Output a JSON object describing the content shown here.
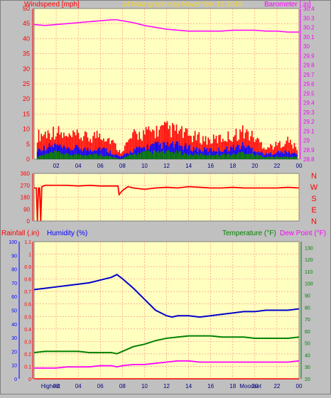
{
  "colors": {
    "background": "#c0c0c0",
    "plot_bg": "#ffffc0",
    "grid": "#ff8080",
    "wind": "#ff0000",
    "gust": "#0000ff",
    "wind_avg": "#008000",
    "barometer": "#ff00ff",
    "direction": "#ff0000",
    "rain": "#ff0000",
    "humidity": "#0000cc",
    "temperature": "#008000",
    "dew_point": "#ff00ff",
    "title": "#ffd700",
    "axis_red": "#ff0000",
    "axis_blue": "#0000ff",
    "axis_green": "#008000",
    "axis_magenta": "#ff00ff"
  },
  "header": {
    "left_label": "Windspeed [mph]",
    "title": "24 hour graph day   November 15 2015",
    "right_label": "Barometer [.in]"
  },
  "lower_labels": {
    "rainfall": "Rainfall (.in)",
    "humidity": "Humidity (%)",
    "temperature": "Temperature (°F)",
    "dew_point": "Dew Point (°F)"
  },
  "compass": [
    "N",
    "W",
    "S",
    "E",
    "N"
  ],
  "time_ticks": [
    "02",
    "04",
    "06",
    "08",
    "10",
    "12",
    "14",
    "16",
    "18",
    "20",
    "22",
    "00"
  ],
  "bottom_overlays": [
    "Highest",
    "Moonset"
  ],
  "chart_data": [
    {
      "type": "area",
      "name": "wind_barometer",
      "title": "24 hour graph day   November 15 2015",
      "xlabel": "",
      "ylabel": "Windspeed [mph]",
      "y2label": "Barometer [.in]",
      "xlim": [
        0,
        24
      ],
      "ylim": [
        0,
        50
      ],
      "y2lim": [
        28.8,
        30.4
      ],
      "y_ticks": [
        0,
        5,
        10,
        15,
        20,
        25,
        30,
        35,
        40,
        45,
        50
      ],
      "y2_ticks": [
        "28.8",
        "28.9",
        "29",
        "29.1",
        "29.2",
        "29.3",
        "29.4",
        "29.5",
        "29.6",
        "29.7",
        "29.8",
        "29.9",
        "30",
        "30.1",
        "30.2",
        "30.3",
        "30.4"
      ],
      "series": [
        {
          "axis": "left",
          "x": [
            0.3,
            1,
            2,
            3,
            4,
            5,
            6,
            7,
            7.8,
            8.3,
            9,
            10,
            11,
            12,
            13,
            14,
            15,
            16,
            17,
            18,
            19,
            20,
            21,
            22,
            23,
            23.9
          ],
          "values": [
            10,
            11,
            12,
            9,
            10,
            9,
            11,
            8,
            3,
            6,
            10,
            11,
            12,
            13,
            12,
            10,
            9,
            8,
            9,
            10,
            12,
            9,
            5,
            6,
            8,
            4
          ]
        },
        {
          "axis": "left",
          "x": [
            0.3,
            1,
            2,
            3,
            4,
            5,
            6,
            7,
            7.8,
            8.3,
            9,
            10,
            11,
            12,
            13,
            14,
            15,
            16,
            17,
            18,
            19,
            20,
            21,
            22,
            23,
            23.9
          ],
          "values": [
            4,
            5,
            6,
            4,
            5,
            4,
            5,
            3,
            1,
            2,
            4,
            5,
            6,
            6,
            6,
            5,
            4,
            4,
            4,
            5,
            6,
            4,
            2,
            3,
            3,
            2
          ]
        },
        {
          "axis": "left",
          "x": [
            0.3,
            1,
            2,
            3,
            4,
            5,
            6,
            7,
            7.8,
            8.3,
            9,
            10,
            11,
            12,
            13,
            14,
            15,
            16,
            17,
            18,
            19,
            20,
            21,
            22,
            23,
            23.9
          ],
          "values": [
            1,
            2,
            3,
            2,
            2,
            2,
            2,
            1,
            0,
            1,
            2,
            3,
            3,
            3,
            3,
            2,
            2,
            2,
            2,
            2,
            3,
            2,
            1,
            1,
            1,
            1
          ]
        },
        {
          "axis": "right",
          "x": [
            0,
            1,
            2,
            3,
            4,
            5,
            6,
            7,
            7.5,
            8,
            9,
            10,
            11,
            12,
            13,
            14,
            15,
            16,
            17,
            18,
            19,
            20,
            21,
            22,
            23,
            24
          ],
          "values": [
            30.23,
            30.22,
            30.23,
            30.24,
            30.25,
            30.26,
            30.27,
            30.28,
            30.28,
            30.27,
            30.25,
            30.22,
            30.2,
            30.18,
            30.17,
            30.16,
            30.16,
            30.16,
            30.16,
            30.17,
            30.17,
            30.17,
            30.16,
            30.16,
            30.15,
            30.15
          ]
        }
      ]
    },
    {
      "type": "line",
      "name": "wind_direction",
      "xlim": [
        0,
        24
      ],
      "ylim": [
        0,
        360
      ],
      "y_ticks": [
        0,
        90,
        180,
        270,
        360
      ],
      "series": [
        {
          "x": [
            0,
            0.2,
            0.3,
            0.4,
            0.5,
            0.6,
            0.7,
            1,
            2,
            3,
            4,
            5,
            6,
            7,
            7.6,
            7.7,
            8,
            8.5,
            9,
            10,
            11,
            12,
            13,
            14,
            15,
            16,
            17,
            18,
            19,
            20,
            21,
            22,
            23,
            24
          ],
          "values": [
            250,
            250,
            0,
            250,
            250,
            0,
            260,
            270,
            270,
            270,
            265,
            270,
            265,
            265,
            265,
            200,
            230,
            260,
            250,
            240,
            250,
            255,
            250,
            260,
            255,
            250,
            250,
            255,
            250,
            250,
            250,
            250,
            255,
            250
          ]
        }
      ]
    },
    {
      "type": "line",
      "name": "rain_humidity_temperature",
      "xlim": [
        0,
        24
      ],
      "y_left_ticks": [
        "0",
        "0.1",
        "0.2",
        "0.3",
        "0.4",
        "0.5",
        "0.6",
        "0.7",
        "0.8",
        "0.9",
        "1",
        "1.1"
      ],
      "humidity_ticks": [
        0,
        10,
        20,
        30,
        40,
        50,
        60,
        70,
        80,
        90,
        100
      ],
      "temperature_ticks": [
        20,
        30,
        40,
        50,
        60,
        70,
        80,
        90,
        100,
        110,
        120,
        130
      ],
      "ylim_rainfall": [
        0,
        1.1
      ],
      "ylim_humidity": [
        0,
        100
      ],
      "ylim_temperature": [
        20,
        135
      ],
      "series": [
        {
          "axis": "humidity",
          "x": [
            0,
            1,
            2,
            3,
            4,
            5,
            6,
            7,
            7.5,
            8,
            9,
            10,
            11,
            12,
            12.5,
            13,
            14,
            15,
            16,
            17,
            18,
            19,
            20,
            21,
            22,
            23,
            24
          ],
          "values": [
            65,
            66,
            67,
            68,
            69,
            70,
            72,
            74,
            76,
            73,
            66,
            58,
            50,
            46,
            45,
            46,
            46,
            45,
            46,
            47,
            48,
            49,
            49,
            50,
            50,
            50,
            51
          ]
        },
        {
          "axis": "temperature",
          "x": [
            0,
            1,
            2,
            3,
            4,
            5,
            6,
            7,
            7.5,
            8,
            9,
            10,
            11,
            12,
            13,
            14,
            15,
            16,
            17,
            18,
            19,
            20,
            21,
            22,
            23,
            24
          ],
          "values": [
            42,
            43,
            43,
            43,
            43,
            42,
            42,
            42,
            41,
            43,
            47,
            49,
            52,
            54,
            55,
            56,
            56,
            56,
            55,
            55,
            55,
            54,
            54,
            54,
            54,
            55
          ]
        },
        {
          "axis": "temperature",
          "x": [
            0,
            1,
            2,
            3,
            4,
            5,
            6,
            7,
            7.5,
            8,
            9,
            10,
            11,
            12,
            13,
            14,
            15,
            16,
            17,
            18,
            19,
            20,
            21,
            22,
            23,
            24
          ],
          "values": [
            29,
            29,
            29,
            30,
            30,
            30,
            31,
            31,
            30,
            31,
            32,
            32,
            33,
            34,
            35,
            35,
            34,
            34,
            34,
            34,
            34,
            34,
            34,
            34,
            34,
            35
          ]
        },
        {
          "axis": "rainfall",
          "x": [
            0,
            24
          ],
          "values": [
            0,
            0
          ]
        }
      ]
    }
  ]
}
